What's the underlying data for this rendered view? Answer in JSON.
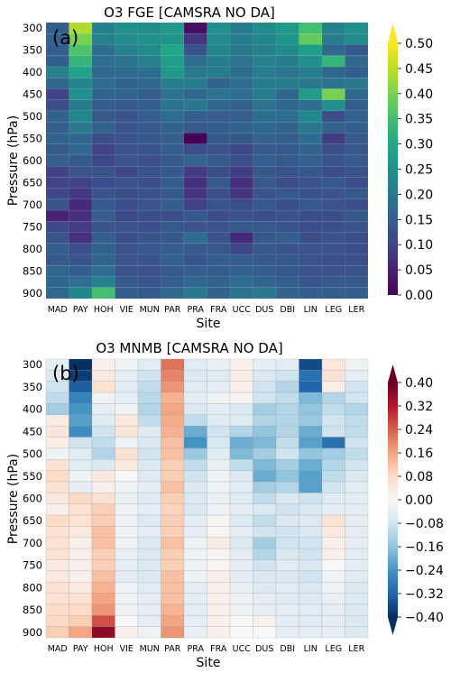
{
  "figure": {
    "panels": [
      {
        "id": "a",
        "title": "O3 FGE [CAMSRA NO DA]",
        "panel_label": "(a)",
        "xlabel": "Site",
        "ylabel": "Pressure (hPa)",
        "colormap": "viridis",
        "colorbar_ticks": [
          "0.00",
          "0.05",
          "0.10",
          "0.15",
          "0.20",
          "0.25",
          "0.30",
          "0.35",
          "0.40",
          "0.45",
          "0.50"
        ]
      },
      {
        "id": "b",
        "title": "O3 MNMB [CAMSRA NO DA]",
        "panel_label": "(b)",
        "xlabel": "Site",
        "ylabel": "Pressure (hPa)",
        "colormap": "RdBu_r",
        "colorbar_ticks": [
          "−0.40",
          "−0.32",
          "−0.24",
          "−0.16",
          "−0.08",
          "0.00",
          "0.08",
          "0.16",
          "0.24",
          "0.32",
          "0.40"
        ]
      }
    ]
  },
  "chart_data": [
    {
      "type": "heatmap",
      "title": "O3 FGE [CAMSRA NO DA]",
      "xlabel": "Site",
      "ylabel": "Pressure (hPa)",
      "x_categories": [
        "MAD",
        "PAY",
        "HOH",
        "VIE",
        "MUN",
        "PAR",
        "PRA",
        "FRA",
        "UCC",
        "DUS",
        "DBI",
        "LIN",
        "LEG",
        "LER"
      ],
      "y_levels": [
        300,
        325,
        350,
        375,
        400,
        425,
        450,
        475,
        500,
        525,
        550,
        575,
        600,
        625,
        650,
        675,
        700,
        725,
        750,
        775,
        800,
        825,
        850,
        875,
        900
      ],
      "y_tick_labels": [
        "300",
        "350",
        "400",
        "450",
        "500",
        "550",
        "600",
        "650",
        "700",
        "750",
        "800",
        "850",
        "900"
      ],
      "color_range": [
        0.0,
        0.5
      ],
      "values": [
        [
          0.15,
          0.44,
          0.22,
          0.25,
          0.24,
          0.27,
          0.02,
          0.25,
          0.21,
          0.24,
          0.27,
          0.35,
          0.22,
          0.25
        ],
        [
          0.16,
          0.4,
          0.22,
          0.24,
          0.25,
          0.26,
          0.08,
          0.24,
          0.21,
          0.23,
          0.26,
          0.38,
          0.21,
          0.24
        ],
        [
          0.15,
          0.36,
          0.18,
          0.22,
          0.24,
          0.3,
          0.13,
          0.23,
          0.2,
          0.22,
          0.24,
          0.28,
          0.17,
          0.14
        ],
        [
          0.15,
          0.33,
          0.18,
          0.19,
          0.22,
          0.28,
          0.18,
          0.21,
          0.19,
          0.22,
          0.21,
          0.25,
          0.33,
          0.17
        ],
        [
          0.22,
          0.29,
          0.17,
          0.18,
          0.18,
          0.27,
          0.2,
          0.21,
          0.18,
          0.21,
          0.19,
          0.21,
          0.17,
          0.15
        ],
        [
          0.17,
          0.23,
          0.18,
          0.16,
          0.17,
          0.21,
          0.21,
          0.16,
          0.18,
          0.21,
          0.21,
          0.2,
          0.19,
          0.2
        ],
        [
          0.1,
          0.25,
          0.16,
          0.16,
          0.15,
          0.19,
          0.17,
          0.19,
          0.18,
          0.21,
          0.17,
          0.28,
          0.4,
          0.17
        ],
        [
          0.12,
          0.21,
          0.15,
          0.14,
          0.15,
          0.19,
          0.2,
          0.17,
          0.16,
          0.19,
          0.17,
          0.18,
          0.25,
          0.15
        ],
        [
          0.16,
          0.23,
          0.14,
          0.13,
          0.15,
          0.18,
          0.15,
          0.15,
          0.15,
          0.18,
          0.18,
          0.23,
          0.12,
          0.16
        ],
        [
          0.15,
          0.2,
          0.16,
          0.13,
          0.14,
          0.16,
          0.14,
          0.15,
          0.16,
          0.17,
          0.16,
          0.2,
          0.16,
          0.15
        ],
        [
          0.16,
          0.17,
          0.12,
          0.13,
          0.14,
          0.15,
          0.0,
          0.14,
          0.14,
          0.16,
          0.15,
          0.18,
          0.09,
          0.14
        ],
        [
          0.14,
          0.17,
          0.1,
          0.13,
          0.13,
          0.15,
          0.12,
          0.13,
          0.11,
          0.14,
          0.14,
          0.16,
          0.12,
          0.14
        ],
        [
          0.15,
          0.14,
          0.11,
          0.13,
          0.12,
          0.14,
          0.16,
          0.14,
          0.12,
          0.15,
          0.14,
          0.15,
          0.13,
          0.14
        ],
        [
          0.1,
          0.13,
          0.13,
          0.11,
          0.13,
          0.14,
          0.09,
          0.12,
          0.09,
          0.14,
          0.13,
          0.14,
          0.12,
          0.13
        ],
        [
          0.1,
          0.1,
          0.12,
          0.13,
          0.12,
          0.15,
          0.07,
          0.14,
          0.07,
          0.14,
          0.12,
          0.13,
          0.14,
          0.12
        ],
        [
          0.11,
          0.08,
          0.13,
          0.12,
          0.13,
          0.14,
          0.08,
          0.12,
          0.08,
          0.13,
          0.14,
          0.13,
          0.13,
          0.14
        ],
        [
          0.13,
          0.06,
          0.14,
          0.12,
          0.13,
          0.15,
          0.1,
          0.13,
          0.12,
          0.14,
          0.12,
          0.14,
          0.13,
          0.12
        ],
        [
          0.05,
          0.07,
          0.15,
          0.11,
          0.12,
          0.12,
          0.14,
          0.12,
          0.13,
          0.12,
          0.13,
          0.12,
          0.12,
          0.14
        ],
        [
          0.11,
          0.09,
          0.13,
          0.13,
          0.12,
          0.14,
          0.13,
          0.13,
          0.14,
          0.14,
          0.13,
          0.12,
          0.12,
          0.13
        ],
        [
          0.13,
          0.07,
          0.15,
          0.12,
          0.13,
          0.14,
          0.18,
          0.13,
          0.06,
          0.14,
          0.15,
          0.12,
          0.13,
          0.12
        ],
        [
          0.15,
          0.12,
          0.16,
          0.13,
          0.14,
          0.15,
          0.14,
          0.14,
          0.11,
          0.14,
          0.13,
          0.13,
          0.13,
          0.12
        ],
        [
          0.14,
          0.13,
          0.16,
          0.13,
          0.13,
          0.15,
          0.13,
          0.15,
          0.15,
          0.14,
          0.14,
          0.13,
          0.12,
          0.12
        ],
        [
          0.17,
          0.15,
          0.18,
          0.13,
          0.13,
          0.14,
          0.15,
          0.15,
          0.16,
          0.15,
          0.14,
          0.13,
          0.13,
          0.13
        ],
        [
          0.17,
          0.18,
          0.22,
          0.14,
          0.13,
          0.15,
          0.17,
          0.16,
          0.18,
          0.16,
          0.15,
          0.13,
          0.14,
          0.14
        ],
        [
          0.17,
          0.23,
          0.35,
          0.15,
          0.14,
          0.17,
          0.2,
          0.16,
          0.19,
          0.2,
          0.16,
          0.15,
          0.15,
          0.15
        ]
      ]
    },
    {
      "type": "heatmap",
      "title": "O3 MNMB [CAMSRA NO DA]",
      "xlabel": "Site",
      "ylabel": "Pressure (hPa)",
      "x_categories": [
        "MAD",
        "PAY",
        "HOH",
        "VIE",
        "MUN",
        "PAR",
        "PRA",
        "FRA",
        "UCC",
        "DUS",
        "DBI",
        "LIN",
        "LEG",
        "LER"
      ],
      "y_levels": [
        300,
        325,
        350,
        375,
        400,
        425,
        450,
        475,
        500,
        525,
        550,
        575,
        600,
        625,
        650,
        675,
        700,
        725,
        750,
        775,
        800,
        825,
        850,
        875,
        900
      ],
      "y_tick_labels": [
        "300",
        "350",
        "400",
        "450",
        "500",
        "550",
        "600",
        "650",
        "700",
        "750",
        "800",
        "850",
        "900"
      ],
      "color_range": [
        -0.4,
        0.4
      ],
      "values": [
        [
          -0.04,
          -0.42,
          0.02,
          -0.02,
          -0.05,
          0.22,
          -0.05,
          -0.03,
          0.02,
          -0.04,
          -0.05,
          -0.36,
          0.05,
          -0.02
        ],
        [
          -0.06,
          -0.38,
          0.04,
          -0.04,
          -0.08,
          0.2,
          -0.06,
          -0.05,
          0.03,
          -0.06,
          -0.08,
          -0.3,
          0.06,
          -0.04
        ],
        [
          -0.08,
          -0.33,
          0.06,
          -0.05,
          -0.1,
          0.18,
          -0.05,
          -0.04,
          0.02,
          -0.08,
          -0.12,
          -0.32,
          0.03,
          -0.08
        ],
        [
          -0.1,
          -0.27,
          -0.02,
          -0.04,
          -0.11,
          0.14,
          -0.04,
          -0.02,
          0.01,
          -0.08,
          -0.1,
          -0.18,
          -0.12,
          -0.08
        ],
        [
          -0.14,
          -0.24,
          -0.04,
          -0.02,
          -0.12,
          0.16,
          -0.06,
          -0.04,
          -0.06,
          -0.14,
          -0.12,
          -0.16,
          -0.1,
          -0.12
        ],
        [
          0.03,
          -0.22,
          -0.05,
          0.04,
          -0.1,
          0.15,
          -0.1,
          -0.05,
          -0.05,
          -0.12,
          -0.12,
          -0.15,
          -0.08,
          -0.1
        ],
        [
          0.05,
          -0.25,
          -0.08,
          0.05,
          -0.05,
          0.14,
          -0.2,
          -0.08,
          -0.12,
          -0.16,
          -0.12,
          -0.2,
          -0.08,
          -0.1
        ],
        [
          0.03,
          -0.08,
          -0.1,
          -0.02,
          -0.06,
          0.12,
          -0.24,
          -0.06,
          -0.2,
          -0.18,
          -0.1,
          -0.22,
          -0.3,
          -0.08
        ],
        [
          -0.02,
          -0.05,
          -0.12,
          0.06,
          -0.08,
          0.12,
          -0.15,
          -0.05,
          -0.18,
          -0.14,
          -0.08,
          -0.16,
          -0.14,
          -0.1
        ],
        [
          0.06,
          -0.05,
          -0.06,
          0.04,
          -0.06,
          0.1,
          -0.1,
          -0.03,
          -0.1,
          -0.18,
          -0.14,
          -0.2,
          -0.12,
          -0.08
        ],
        [
          0.08,
          -0.02,
          0.04,
          0.0,
          -0.05,
          0.1,
          -0.08,
          -0.02,
          -0.06,
          -0.2,
          -0.16,
          -0.22,
          -0.1,
          -0.06
        ],
        [
          0.06,
          -0.04,
          0.02,
          -0.02,
          -0.04,
          0.12,
          -0.06,
          -0.02,
          -0.05,
          -0.14,
          -0.12,
          -0.22,
          -0.08,
          -0.05
        ],
        [
          0.04,
          0.08,
          0.06,
          -0.03,
          -0.05,
          0.1,
          -0.06,
          -0.03,
          -0.05,
          -0.1,
          -0.06,
          -0.08,
          -0.05,
          -0.04
        ],
        [
          0.02,
          0.06,
          0.1,
          -0.02,
          -0.04,
          0.09,
          -0.06,
          -0.02,
          -0.04,
          -0.06,
          -0.08,
          -0.06,
          -0.04,
          -0.04
        ],
        [
          0.08,
          0.06,
          0.1,
          -0.02,
          -0.06,
          0.1,
          -0.04,
          0.01,
          -0.06,
          -0.1,
          -0.06,
          -0.06,
          0.06,
          -0.04
        ],
        [
          0.06,
          0.04,
          0.12,
          -0.02,
          -0.04,
          0.1,
          -0.04,
          0.01,
          -0.04,
          -0.08,
          -0.08,
          -0.06,
          0.04,
          -0.04
        ],
        [
          0.06,
          0.02,
          0.12,
          -0.02,
          -0.06,
          0.12,
          -0.02,
          0.03,
          -0.06,
          -0.14,
          -0.08,
          -0.08,
          0.02,
          -0.04
        ],
        [
          0.06,
          0.02,
          0.1,
          -0.03,
          -0.06,
          0.1,
          -0.02,
          0.01,
          -0.04,
          -0.12,
          -0.06,
          -0.08,
          0.02,
          -0.05
        ],
        [
          0.04,
          0.02,
          0.1,
          -0.04,
          -0.06,
          0.1,
          -0.02,
          0.01,
          -0.04,
          -0.08,
          -0.05,
          -0.06,
          0.0,
          -0.04
        ],
        [
          0.04,
          0.02,
          0.12,
          -0.04,
          -0.06,
          0.12,
          -0.02,
          0.02,
          -0.04,
          -0.06,
          -0.06,
          -0.08,
          -0.02,
          -0.05
        ],
        [
          0.06,
          0.04,
          0.14,
          -0.02,
          -0.05,
          0.12,
          -0.04,
          0.02,
          -0.03,
          -0.06,
          -0.05,
          -0.06,
          -0.02,
          -0.06
        ],
        [
          0.06,
          0.06,
          0.16,
          -0.02,
          -0.04,
          0.12,
          -0.04,
          0.02,
          -0.02,
          -0.04,
          -0.05,
          -0.06,
          -0.03,
          -0.06
        ],
        [
          0.08,
          0.08,
          0.18,
          -0.02,
          -0.04,
          0.14,
          -0.04,
          0.02,
          -0.02,
          -0.04,
          -0.04,
          -0.05,
          -0.04,
          -0.06
        ],
        [
          0.08,
          0.1,
          0.26,
          0.0,
          -0.04,
          0.16,
          -0.04,
          0.02,
          0.0,
          0.02,
          -0.04,
          -0.05,
          -0.04,
          -0.06
        ],
        [
          0.1,
          0.16,
          0.36,
          0.02,
          -0.02,
          0.18,
          -0.03,
          0.02,
          0.0,
          0.0,
          -0.04,
          -0.04,
          -0.04,
          -0.06
        ]
      ]
    }
  ]
}
